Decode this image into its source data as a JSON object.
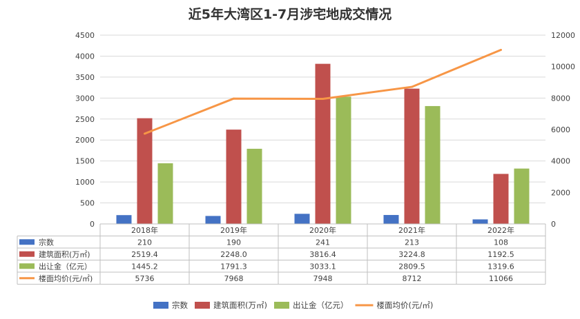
{
  "chart_data": {
    "type": "bar",
    "title": "近5年大湾区1-7月涉宅地成交情况",
    "categories": [
      "2018年",
      "2019年",
      "2020年",
      "2021年",
      "2022年"
    ],
    "y_left": {
      "lim": [
        0,
        4500
      ],
      "ticks": [
        "0",
        "500",
        "1000",
        "1500",
        "2000",
        "2500",
        "3000",
        "3500",
        "4000",
        "4500"
      ]
    },
    "y_right": {
      "lim": [
        0,
        12000
      ],
      "ticks": [
        "0",
        "2000",
        "4000",
        "6000",
        "8000",
        "10000",
        "12000"
      ]
    },
    "series": [
      {
        "name": "宗数",
        "kind": "bar",
        "axis": "left",
        "color": "#4472c4",
        "values": [
          210,
          190,
          241,
          213,
          108
        ],
        "labels": [
          "210",
          "190",
          "241",
          "213",
          "108"
        ]
      },
      {
        "name": "建筑面积(万㎡)",
        "kind": "bar",
        "axis": "left",
        "color": "#c0504d",
        "values": [
          2519.4,
          2248.0,
          3816.4,
          3224.8,
          1192.5
        ],
        "labels": [
          "2519.4",
          "2248.0",
          "3816.4",
          "3224.8",
          "1192.5"
        ]
      },
      {
        "name": "出让金（亿元）",
        "kind": "bar",
        "axis": "left",
        "color": "#9bbb59",
        "values": [
          1445.2,
          1791.3,
          3033.1,
          2809.5,
          1319.6
        ],
        "labels": [
          "1445.2",
          "1791.3",
          "3033.1",
          "2809.5",
          "1319.6"
        ]
      },
      {
        "name": "楼面均价(元/㎡)",
        "kind": "line",
        "axis": "right",
        "color": "#f79646",
        "values": [
          5736,
          7968,
          7948,
          8712,
          11066
        ],
        "labels": [
          "5736",
          "7968",
          "7948",
          "8712",
          "11066"
        ]
      }
    ],
    "grid": true,
    "legend": "bottom",
    "data_table": true
  }
}
